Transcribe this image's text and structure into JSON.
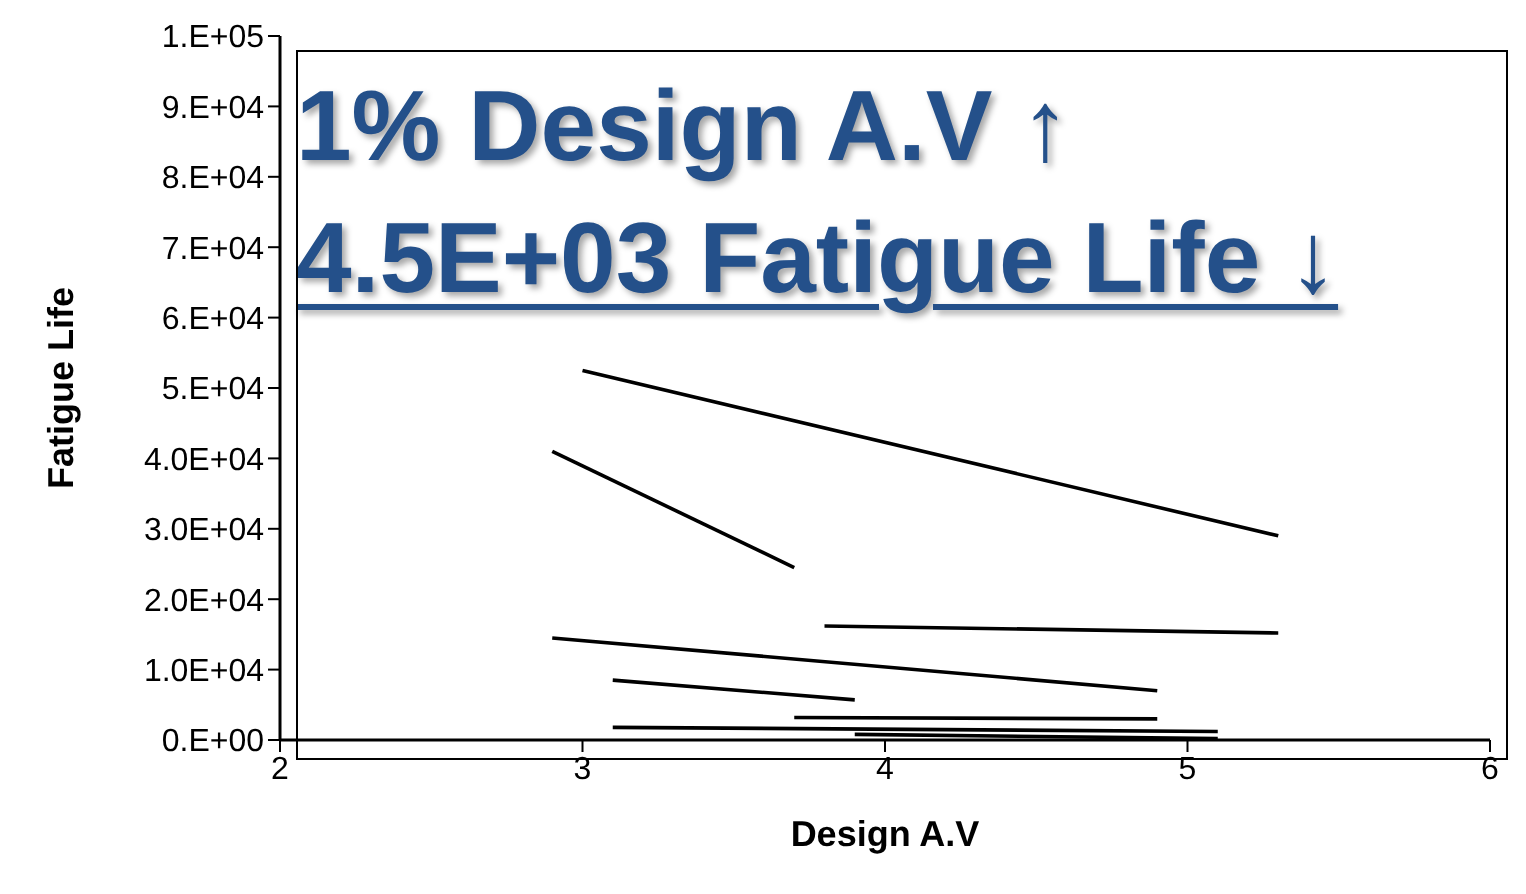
{
  "chart_data": {
    "type": "line",
    "xlabel": "Design A.V",
    "ylabel": "Fatigue Life",
    "annotations": [
      "1% Design A.V ↑",
      "4.5E+03 Fatigue Life ↓"
    ],
    "xlim": [
      2,
      6
    ],
    "xticks": [
      2,
      3,
      4,
      5,
      6
    ],
    "ylim": [
      0,
      100000
    ],
    "yticks": [
      {
        "value": 0,
        "label": "0.E+00"
      },
      {
        "value": 10000,
        "label": "1.0E+04"
      },
      {
        "value": 20000,
        "label": "2.0E+04"
      },
      {
        "value": 30000,
        "label": "3.0E+04"
      },
      {
        "value": 40000,
        "label": "4.0E+04"
      },
      {
        "value": 50000,
        "label": "5.E+04"
      },
      {
        "value": 60000,
        "label": "6.E+04"
      },
      {
        "value": 70000,
        "label": "7.E+04"
      },
      {
        "value": 80000,
        "label": "8.E+04"
      },
      {
        "value": 90000,
        "label": "9.E+04"
      },
      {
        "value": 100000,
        "label": "1.E+05"
      }
    ],
    "grid": false,
    "marker": "none",
    "line_style": "solid",
    "series": [
      {
        "color": "#000000",
        "x": [
          3.0,
          5.3
        ],
        "values": [
          52500,
          29000
        ]
      },
      {
        "color": "#000000",
        "x": [
          2.9,
          3.7
        ],
        "values": [
          41000,
          24500
        ]
      },
      {
        "color": "#000000",
        "x": [
          3.8,
          5.3
        ],
        "values": [
          16200,
          15200
        ]
      },
      {
        "color": "#000000",
        "x": [
          2.9,
          4.9
        ],
        "values": [
          14500,
          7000
        ]
      },
      {
        "color": "#000000",
        "x": [
          3.1,
          3.9
        ],
        "values": [
          8500,
          5700
        ]
      },
      {
        "color": "#000000",
        "x": [
          3.7,
          4.9
        ],
        "values": [
          3200,
          3000
        ]
      },
      {
        "color": "#000000",
        "x": [
          3.1,
          5.1
        ],
        "values": [
          1800,
          1200
        ]
      },
      {
        "color": "#000000",
        "x": [
          3.9,
          5.1
        ],
        "values": [
          800,
          200
        ]
      }
    ]
  }
}
